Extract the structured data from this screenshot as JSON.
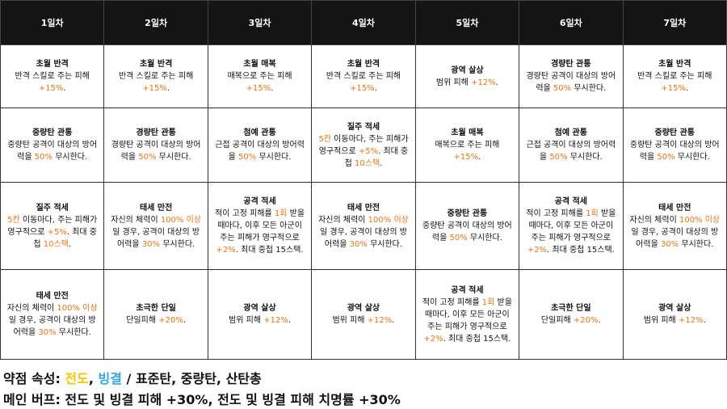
{
  "table": {
    "header": [
      "1일차",
      "2일차",
      "3일차",
      "4일차",
      "5일차",
      "6일차",
      "7일차"
    ],
    "rows": [
      [
        {
          "title": "초월 반격",
          "desc": [
            {
              "text": "반격 스킬로 주는 피해 "
            },
            {
              "text": "+15%",
              "color": "#e8761e"
            },
            {
              "text": "."
            }
          ]
        },
        {
          "title": "초월 반격",
          "desc": [
            {
              "text": "반격 스킬로 주는 피해 "
            },
            {
              "text": "+15%",
              "color": "#e8761e"
            },
            {
              "text": "."
            }
          ]
        },
        {
          "title": "초월 매복",
          "desc": [
            {
              "text": "매복으로 주는 피해 "
            },
            {
              "text": "+15%",
              "color": "#e8761e"
            },
            {
              "text": "."
            }
          ]
        },
        {
          "title": "초월 반격",
          "desc": [
            {
              "text": "반격 스킬로 주는 피해 "
            },
            {
              "text": "+15%",
              "color": "#e8761e"
            },
            {
              "text": "."
            }
          ]
        },
        {
          "title": "광역 살상",
          "desc": [
            {
              "text": "범위 피해 "
            },
            {
              "text": "+12%",
              "color": "#e8761e"
            },
            {
              "text": "."
            }
          ]
        },
        {
          "title": "경량탄 관통",
          "desc": [
            {
              "text": "경량탄 공격이 대상의 방어력을 "
            },
            {
              "text": "50%",
              "color": "#e8761e"
            },
            {
              "text": " 무시한다."
            }
          ]
        },
        {
          "title": "초월 반격",
          "desc": [
            {
              "text": "반격 스킬로 주는 피해 "
            },
            {
              "text": "+15%",
              "color": "#e8761e"
            },
            {
              "text": "."
            }
          ]
        }
      ],
      [
        {
          "title": "중량탄 관통",
          "desc": [
            {
              "text": "중량탄 공격이 대상의 방어력을 "
            },
            {
              "text": "50%",
              "color": "#e8761e"
            },
            {
              "text": " 무시한다."
            }
          ]
        },
        {
          "title": "경량탄 관통",
          "desc": [
            {
              "text": "경량탄 공격이 대상의 방어력을 "
            },
            {
              "text": "50%",
              "color": "#e8761e"
            },
            {
              "text": " 무시한다."
            }
          ]
        },
        {
          "title": "첨예 관통",
          "desc": [
            {
              "text": "근접 공격이 대상의 방어력을 "
            },
            {
              "text": "50%",
              "color": "#e8761e"
            },
            {
              "text": " 무시한다."
            }
          ]
        },
        {
          "title": "질주 적세",
          "desc": [
            {
              "text": "5칸",
              "color": "#e8761e"
            },
            {
              "text": " 이동마다, 주는 피해가 영구적으로 "
            },
            {
              "text": "+5%",
              "color": "#e8761e"
            },
            {
              "text": ". 최대 중첩 "
            },
            {
              "text": "10스택",
              "color": "#e8761e"
            },
            {
              "text": "."
            }
          ]
        },
        {
          "title": "초월 매복",
          "desc": [
            {
              "text": "매복으로 주는 피해 "
            },
            {
              "text": "+15%",
              "color": "#e8761e"
            },
            {
              "text": "."
            }
          ]
        },
        {
          "title": "첨예 관통",
          "desc": [
            {
              "text": "근접 공격이 대상의 방어력을 "
            },
            {
              "text": "50%",
              "color": "#e8761e"
            },
            {
              "text": " 무시한다."
            }
          ]
        },
        {
          "title": "중량탄 관통",
          "desc": [
            {
              "text": "중량탄 공격이 대상의 방어력을 "
            },
            {
              "text": "50%",
              "color": "#e8761e"
            },
            {
              "text": " 무시한다."
            }
          ]
        }
      ],
      [
        {
          "title": "질주 적세",
          "desc": [
            {
              "text": "5칸",
              "color": "#e8761e"
            },
            {
              "text": " 이동마다, 주는 피해가 영구적으로 "
            },
            {
              "text": "+5%",
              "color": "#e8761e"
            },
            {
              "text": ". 최대 중첩 "
            },
            {
              "text": "10스택",
              "color": "#e8761e"
            },
            {
              "text": "."
            }
          ]
        },
        {
          "title": "태세 만전",
          "desc": [
            {
              "text": "자신의 체력이 "
            },
            {
              "text": "100% 이상",
              "color": "#e8761e"
            },
            {
              "text": "일 경우, 공격이 대상의 방어력을 "
            },
            {
              "text": "30%",
              "color": "#e8761e"
            },
            {
              "text": " 무시한다."
            }
          ]
        },
        {
          "title": "공격 적세",
          "desc": [
            {
              "text": "적이 고정 피해를 "
            },
            {
              "text": "1회",
              "color": "#e8761e"
            },
            {
              "text": " 받을 때마다, 이후 모든 아군이 주는 피해가 영구적으로 "
            },
            {
              "text": "+2%",
              "color": "#e8761e"
            },
            {
              "text": ". 최대 중첩 15스택."
            }
          ]
        },
        {
          "title": "태세 만전",
          "desc": [
            {
              "text": "자신의 체력이 "
            },
            {
              "text": "100% 이상",
              "color": "#e8761e"
            },
            {
              "text": "일 경우, 공격이 대상의 방어력을 "
            },
            {
              "text": "30%",
              "color": "#e8761e"
            },
            {
              "text": " 무시한다."
            }
          ]
        },
        {
          "title": "중량탄 관통",
          "desc": [
            {
              "text": "중량탄 공격이 대상의 방어력을 "
            },
            {
              "text": "50%",
              "color": "#e8761e"
            },
            {
              "text": " 무시한다."
            }
          ]
        },
        {
          "title": "공격 적세",
          "desc": [
            {
              "text": "적이 고정 피해를 "
            },
            {
              "text": "1회",
              "color": "#e8761e"
            },
            {
              "text": " 받을 때마다, 이후 모든 아군이 주는 피해가 영구적으로 "
            },
            {
              "text": "+2%",
              "color": "#e8761e"
            },
            {
              "text": ". 최대 중첩 15스택."
            }
          ]
        },
        {
          "title": "태세 만전",
          "desc": [
            {
              "text": "자신의 체력이 "
            },
            {
              "text": "100% 이상",
              "color": "#e8761e"
            },
            {
              "text": "일 경우, 공격이 대상의 방어력을 "
            },
            {
              "text": "30%",
              "color": "#e8761e"
            },
            {
              "text": " 무시한다."
            }
          ]
        }
      ],
      [
        {
          "title": "태세 만전",
          "desc": [
            {
              "text": "자신의 체력이 "
            },
            {
              "text": "100% 이상",
              "color": "#e8761e"
            },
            {
              "text": "일 경우, 공격이 대상의 방어력을 "
            },
            {
              "text": "30%",
              "color": "#e8761e"
            },
            {
              "text": " 무시한다."
            }
          ]
        },
        {
          "title": "초극한 단일",
          "desc": [
            {
              "text": "단일피해 "
            },
            {
              "text": "+20%",
              "color": "#e8761e"
            },
            {
              "text": "."
            }
          ]
        },
        {
          "title": "광역 살상",
          "desc": [
            {
              "text": "범위 피해 "
            },
            {
              "text": "+12%",
              "color": "#e8761e"
            },
            {
              "text": "."
            }
          ]
        },
        {
          "title": "광역 살상",
          "desc": [
            {
              "text": "범위 피해 "
            },
            {
              "text": "+12%",
              "color": "#e8761e"
            },
            {
              "text": "."
            }
          ]
        },
        {
          "title": "공격 적세",
          "desc": [
            {
              "text": "적이 고정 피해를 "
            },
            {
              "text": "1회",
              "color": "#e8761e"
            },
            {
              "text": " 받을 때마다, 이후 모든 아군이 주는 피해가 영구적으로 "
            },
            {
              "text": "+2%",
              "color": "#e8761e"
            },
            {
              "text": ". 최대 중첩 15스택."
            }
          ]
        },
        {
          "title": "초극한 단일",
          "desc": [
            {
              "text": "단일피해 "
            },
            {
              "text": "+20%",
              "color": "#e8761e"
            },
            {
              "text": "."
            }
          ]
        },
        {
          "title": "광역 살상",
          "desc": [
            {
              "text": "범위 피해 "
            },
            {
              "text": "+12%",
              "color": "#e8761e"
            },
            {
              "text": "."
            }
          ]
        }
      ]
    ]
  },
  "footer": [
    [
      {
        "text": "약점 속성: "
      },
      {
        "text": "전도",
        "color": "#f5c400"
      },
      {
        "text": ", "
      },
      {
        "text": "빙결",
        "color": "#3aa3e3"
      },
      {
        "text": " / 표준탄, 중량탄, 산탄총"
      }
    ],
    [
      {
        "text": "메인 버프: 전도 및 빙결 피해 +30%, 전도 및 빙결 피해 치명률 +30%"
      }
    ]
  ]
}
